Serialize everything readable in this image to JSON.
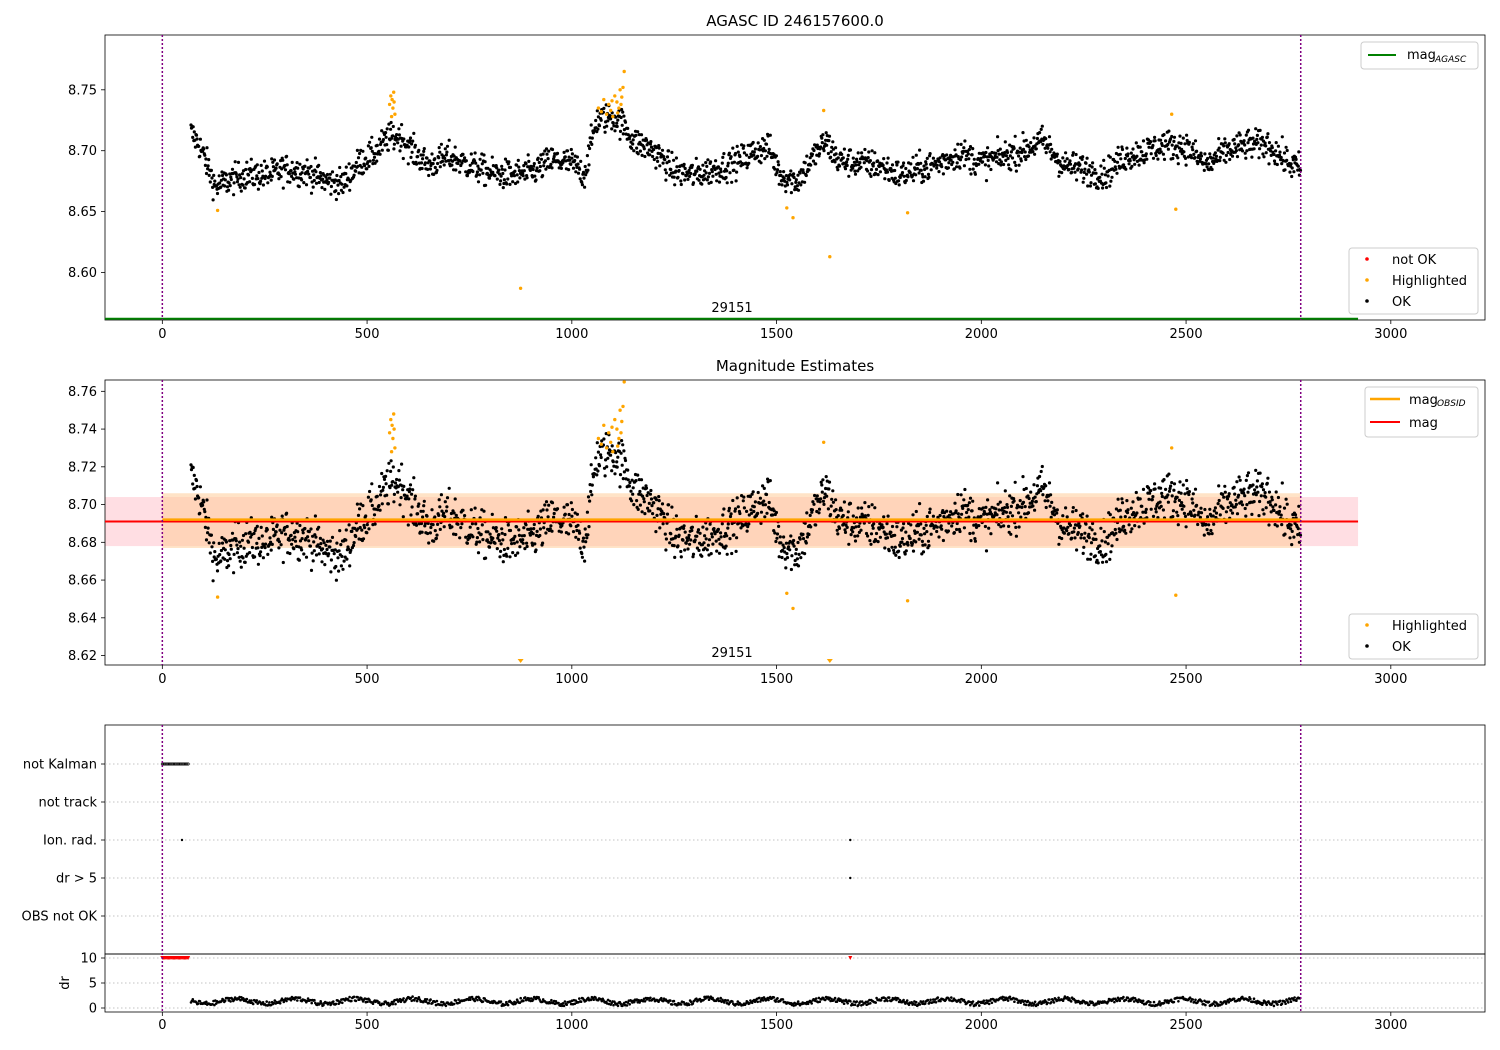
{
  "colors": {
    "ok": "#000000",
    "highlighted": "#ffa500",
    "not_ok": "#ff0000",
    "agasc_line": "#008000",
    "obsid_line": "#ffa500",
    "mag_line": "#ff0000",
    "vline": "#800080",
    "band_mag": "#ffb6c1",
    "band_obsid": "#ffcc99"
  },
  "chart_data": [
    {
      "type": "scatter",
      "title": "AGASC ID 246157600.0",
      "xlim": [
        -140,
        3230
      ],
      "ylim": [
        8.561,
        8.795
      ],
      "xticks": [
        0,
        500,
        1000,
        1500,
        2000,
        2500,
        3000
      ],
      "yticks": [
        8.6,
        8.65,
        8.7,
        8.75
      ],
      "ytick_labels": [
        "8.60",
        "8.65",
        "8.70",
        "8.75"
      ],
      "grid": false,
      "obsid_boundaries": [
        0,
        2780
      ],
      "obsid_label": {
        "text": "29151",
        "x": 1390
      },
      "lines": [
        {
          "name": "mag_AGASC",
          "y": 8.562,
          "x_range": [
            -140,
            2920
          ]
        }
      ],
      "legend_top": [
        {
          "label": "mag",
          "sub": "AGASC",
          "style": "line",
          "color": "agasc_line"
        }
      ],
      "legend_bottom": [
        {
          "label": "not OK",
          "style": "dot",
          "color": "not_ok"
        },
        {
          "label": "Highlighted",
          "style": "dot",
          "color": "highlighted"
        },
        {
          "label": "OK",
          "style": "dot",
          "color": "ok"
        }
      ],
      "segments": [
        [
          70,
          8.715
        ],
        [
          90,
          8.705
        ],
        [
          110,
          8.688
        ],
        [
          130,
          8.67
        ],
        [
          160,
          8.675
        ],
        [
          200,
          8.68
        ],
        [
          260,
          8.68
        ],
        [
          300,
          8.685
        ],
        [
          350,
          8.683
        ],
        [
          400,
          8.675
        ],
        [
          440,
          8.673
        ],
        [
          480,
          8.69
        ],
        [
          520,
          8.698
        ],
        [
          550,
          8.71
        ],
        [
          580,
          8.712
        ],
        [
          610,
          8.7
        ],
        [
          650,
          8.688
        ],
        [
          700,
          8.695
        ],
        [
          750,
          8.688
        ],
        [
          800,
          8.682
        ],
        [
          850,
          8.68
        ],
        [
          900,
          8.682
        ],
        [
          950,
          8.692
        ],
        [
          1000,
          8.69
        ],
        [
          1030,
          8.68
        ],
        [
          1060,
          8.725
        ],
        [
          1100,
          8.728
        ],
        [
          1130,
          8.72
        ],
        [
          1150,
          8.708
        ],
        [
          1200,
          8.7
        ],
        [
          1250,
          8.683
        ],
        [
          1300,
          8.68
        ],
        [
          1350,
          8.685
        ],
        [
          1400,
          8.69
        ],
        [
          1450,
          8.7
        ],
        [
          1480,
          8.703
        ],
        [
          1510,
          8.68
        ],
        [
          1550,
          8.675
        ],
        [
          1580,
          8.69
        ],
        [
          1620,
          8.708
        ],
        [
          1650,
          8.692
        ],
        [
          1700,
          8.69
        ],
        [
          1750,
          8.688
        ],
        [
          1800,
          8.68
        ],
        [
          1850,
          8.685
        ],
        [
          1900,
          8.69
        ],
        [
          1950,
          8.698
        ],
        [
          2000,
          8.69
        ],
        [
          2050,
          8.695
        ],
        [
          2100,
          8.7
        ],
        [
          2150,
          8.708
        ],
        [
          2200,
          8.688
        ],
        [
          2250,
          8.685
        ],
        [
          2300,
          8.68
        ],
        [
          2350,
          8.695
        ],
        [
          2400,
          8.7
        ],
        [
          2450,
          8.705
        ],
        [
          2500,
          8.703
        ],
        [
          2550,
          8.688
        ],
        [
          2600,
          8.7
        ],
        [
          2650,
          8.705
        ],
        [
          2700,
          8.705
        ],
        [
          2750,
          8.69
        ],
        [
          2780,
          8.685
        ]
      ],
      "scatter_noise": 0.008,
      "series": [
        {
          "name": "Highlighted",
          "color": "highlighted",
          "points": [
            [
              555,
              8.738
            ],
            [
              558,
              8.745
            ],
            [
              561,
              8.742
            ],
            [
              563,
              8.735
            ],
            [
              566,
              8.74
            ],
            [
              568,
              8.73
            ],
            [
              560,
              8.728
            ],
            [
              565,
              8.748
            ],
            [
              1065,
              8.735
            ],
            [
              1072,
              8.732
            ],
            [
              1078,
              8.742
            ],
            [
              1085,
              8.73
            ],
            [
              1090,
              8.738
            ],
            [
              1095,
              8.733
            ],
            [
              1100,
              8.728
            ],
            [
              1105,
              8.745
            ],
            [
              1110,
              8.74
            ],
            [
              1115,
              8.735
            ],
            [
              1118,
              8.75
            ],
            [
              1122,
              8.744
            ],
            [
              1125,
              8.752
            ],
            [
              1128,
              8.765
            ],
            [
              1120,
              8.738
            ],
            [
              1112,
              8.731
            ],
            [
              1098,
              8.741
            ],
            [
              135,
              8.651
            ],
            [
              875,
              8.587
            ],
            [
              1525,
              8.653
            ],
            [
              1540,
              8.645
            ],
            [
              1615,
              8.733
            ],
            [
              1630,
              8.613
            ],
            [
              1820,
              8.649
            ],
            [
              2465,
              8.73
            ],
            [
              2475,
              8.652
            ]
          ]
        },
        {
          "name": "not OK",
          "color": "not_ok",
          "points": []
        }
      ]
    },
    {
      "type": "scatter",
      "title": "Magnitude Estimates",
      "xlim": [
        -140,
        3230
      ],
      "ylim": [
        8.615,
        8.766
      ],
      "xticks": [
        0,
        500,
        1000,
        1500,
        2000,
        2500,
        3000
      ],
      "yticks": [
        8.62,
        8.64,
        8.66,
        8.68,
        8.7,
        8.72,
        8.74,
        8.76
      ],
      "ytick_labels": [
        "8.62",
        "8.64",
        "8.66",
        "8.68",
        "8.70",
        "8.72",
        "8.74",
        "8.76"
      ],
      "grid": false,
      "obsid_boundaries": [
        0,
        2780
      ],
      "obsid_label": {
        "text": "29151",
        "x": 1390
      },
      "mag": {
        "value": 8.691,
        "band": [
          8.678,
          8.704
        ],
        "x_range": [
          -140,
          2920
        ]
      },
      "mag_obsid": {
        "value": 8.692,
        "band": [
          8.677,
          8.706
        ],
        "x_range": [
          0,
          2780
        ]
      },
      "legend_top": [
        {
          "label": "mag",
          "sub": "OBSID",
          "style": "line",
          "color": "obsid_line"
        },
        {
          "label": "mag",
          "sub": "",
          "style": "line",
          "color": "mag_line"
        }
      ],
      "legend_bottom": [
        {
          "label": "Highlighted",
          "style": "dot",
          "color": "highlighted"
        },
        {
          "label": "OK",
          "style": "dot",
          "color": "ok"
        }
      ],
      "out_of_range_markers": [
        875,
        1630
      ],
      "series_ref": "same as panel 1"
    },
    {
      "type": "scatter",
      "title": "",
      "xlim": [
        -140,
        3230
      ],
      "xticks": [
        0,
        500,
        1000,
        1500,
        2000,
        2500,
        3000
      ],
      "obsid_boundaries": [
        0,
        2780
      ],
      "flag_rows": [
        "not Kalman",
        "not track",
        "Ion. rad.",
        "dr > 5",
        "OBS not OK"
      ],
      "flag_points": {
        "not Kalman": [
          0,
          65
        ],
        "Ion. rad.": [
          48,
          1680
        ],
        "dr > 5": [
          1680
        ]
      },
      "dr": {
        "ylabel": "dr",
        "yticks": [
          0,
          5,
          10
        ],
        "ylim": [
          -0.8,
          10.8
        ],
        "clipped_range": [
          0,
          65
        ],
        "clipped_extra": [
          1680
        ],
        "values_range": [
          0,
          2.5
        ]
      }
    }
  ]
}
